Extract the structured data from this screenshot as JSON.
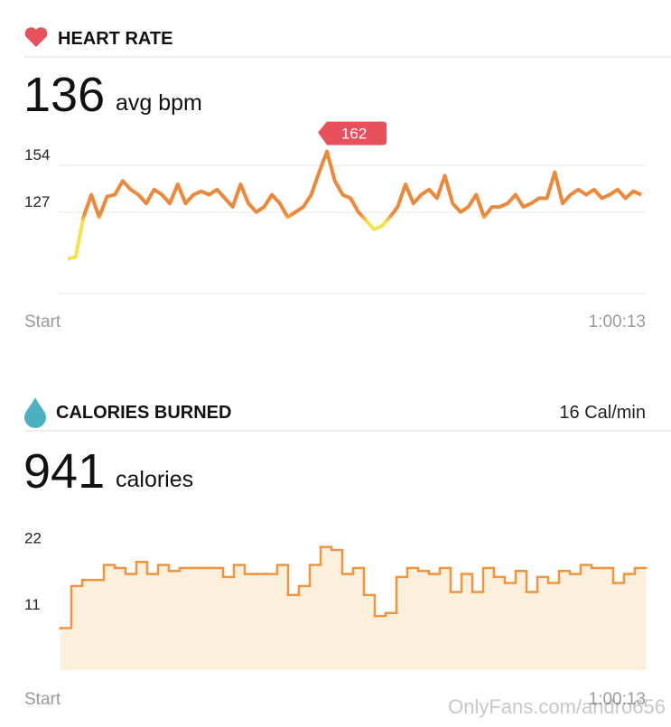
{
  "heart_rate": {
    "title": "HEART RATE",
    "value": 136,
    "unit": "avg bpm"
  },
  "calories": {
    "title": "CALORIES BURNED",
    "rate": "16 Cal/min",
    "value": 941,
    "unit": "calories"
  },
  "chart_data": [
    {
      "type": "line",
      "colors": [
        "#ef8739",
        "#f6e24b"
      ],
      "peak_color": "#e8505b",
      "values": [
        100,
        101,
        124,
        137,
        124,
        136,
        137,
        145,
        140,
        137,
        132,
        140,
        137,
        132,
        143,
        132,
        137,
        139,
        137,
        140,
        135,
        130,
        143,
        132,
        127,
        130,
        137,
        132,
        124,
        127,
        130,
        137,
        150,
        162,
        145,
        137,
        135,
        127,
        122,
        117,
        119,
        124,
        130,
        143,
        132,
        137,
        140,
        135,
        148,
        132,
        127,
        130,
        137,
        124,
        130,
        130,
        132,
        137,
        130,
        132,
        135,
        135,
        150,
        132,
        137,
        140,
        137,
        140,
        135,
        137,
        140,
        135,
        139,
        137
      ],
      "ylim": [
        80,
        166
      ],
      "yticks": [
        127,
        154
      ],
      "grid": true,
      "x_labels": [
        "Start",
        "1:00:13"
      ]
    },
    {
      "type": "step-area",
      "color": "#f0953e",
      "fill": "#fcefdc",
      "values": [
        7,
        14,
        15,
        15,
        17.5,
        17,
        16,
        18,
        16,
        17.5,
        16.5,
        17,
        17,
        17,
        17,
        15.5,
        17.5,
        16,
        16,
        16,
        17.5,
        12.5,
        14,
        17.5,
        20.5,
        20,
        16,
        17,
        12.5,
        9,
        9.5,
        15.5,
        17,
        16.5,
        16,
        17,
        13,
        16,
        13,
        17,
        15.5,
        14.5,
        16.5,
        13,
        15.5,
        14.5,
        16.5,
        16,
        17.5,
        17,
        17,
        14.5,
        16,
        17
      ],
      "ylim": [
        0,
        23
      ],
      "yticks": [
        11,
        22
      ],
      "grid": false,
      "x_labels": [
        "Start",
        "1:00:13"
      ]
    }
  ],
  "watermark": "OnlyFans.com/andro656"
}
